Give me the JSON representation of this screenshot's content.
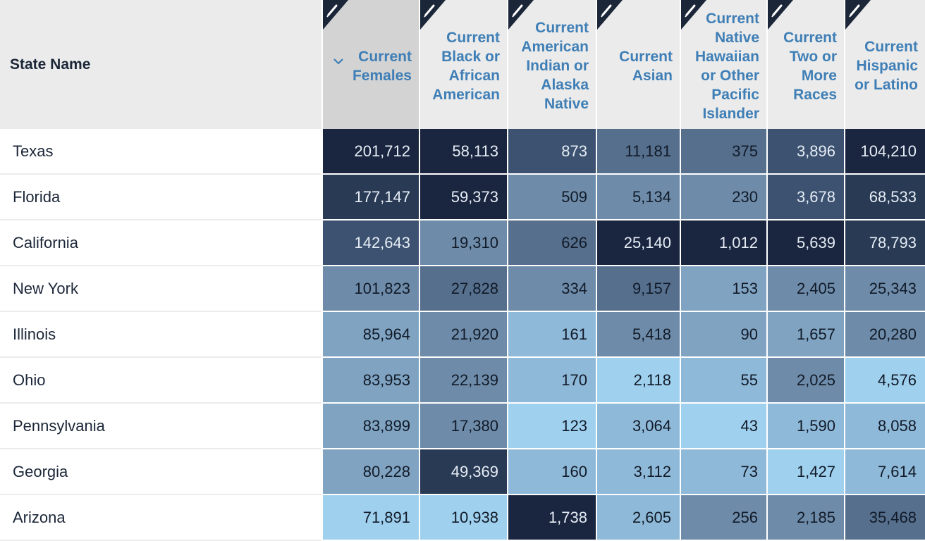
{
  "table": {
    "state_header": "State Name",
    "columns": [
      {
        "label": "Current\nFemales",
        "sorted": true
      },
      {
        "label": "Current\nBlack or\nAfrican\nAmerican"
      },
      {
        "label": "Current\nAmerican\nIndian or\nAlaska\nNative"
      },
      {
        "label": "Current\nAsian"
      },
      {
        "label": "Current\nNative\nHawaiian\nor Other\nPacific\nIslander"
      },
      {
        "label": "Current\nTwo or\nMore\nRaces"
      },
      {
        "label": "Current\nHispanic\nor Latino"
      }
    ],
    "rows": [
      {
        "state": "Texas",
        "values": [
          "201,712",
          "58,113",
          "873",
          "11,181",
          "375",
          "3,896",
          "104,210"
        ]
      },
      {
        "state": "Florida",
        "values": [
          "177,147",
          "59,373",
          "509",
          "5,134",
          "230",
          "3,678",
          "68,533"
        ]
      },
      {
        "state": "California",
        "values": [
          "142,643",
          "19,310",
          "626",
          "25,140",
          "1,012",
          "5,639",
          "78,793"
        ]
      },
      {
        "state": "New York",
        "values": [
          "101,823",
          "27,828",
          "334",
          "9,157",
          "153",
          "2,405",
          "25,343"
        ]
      },
      {
        "state": "Illinois",
        "values": [
          "85,964",
          "21,920",
          "161",
          "5,418",
          "90",
          "1,657",
          "20,280"
        ]
      },
      {
        "state": "Ohio",
        "values": [
          "83,953",
          "22,139",
          "170",
          "2,118",
          "55",
          "2,025",
          "4,576"
        ]
      },
      {
        "state": "Pennsylvania",
        "values": [
          "83,899",
          "17,380",
          "123",
          "3,064",
          "43",
          "1,590",
          "8,058"
        ]
      },
      {
        "state": "Georgia",
        "values": [
          "80,228",
          "49,369",
          "160",
          "3,112",
          "73",
          "1,427",
          "7,614"
        ]
      },
      {
        "state": "Arizona",
        "values": [
          "71,891",
          "10,938",
          "1,738",
          "2,605",
          "256",
          "2,185",
          "35,468"
        ]
      }
    ]
  },
  "colors": {
    "header_bg": "#ebebeb",
    "header_sorted_bg": "#d3d3d3",
    "header_text": "#3f7fb6",
    "state_text": "#1b2638",
    "heatmap_scale": [
      "#9fd0ee",
      "#8fb9d8",
      "#7fa3c1",
      "#6e8ca9",
      "#556f8d",
      "#3c5270",
      "#293a55",
      "#1a2640"
    ]
  }
}
